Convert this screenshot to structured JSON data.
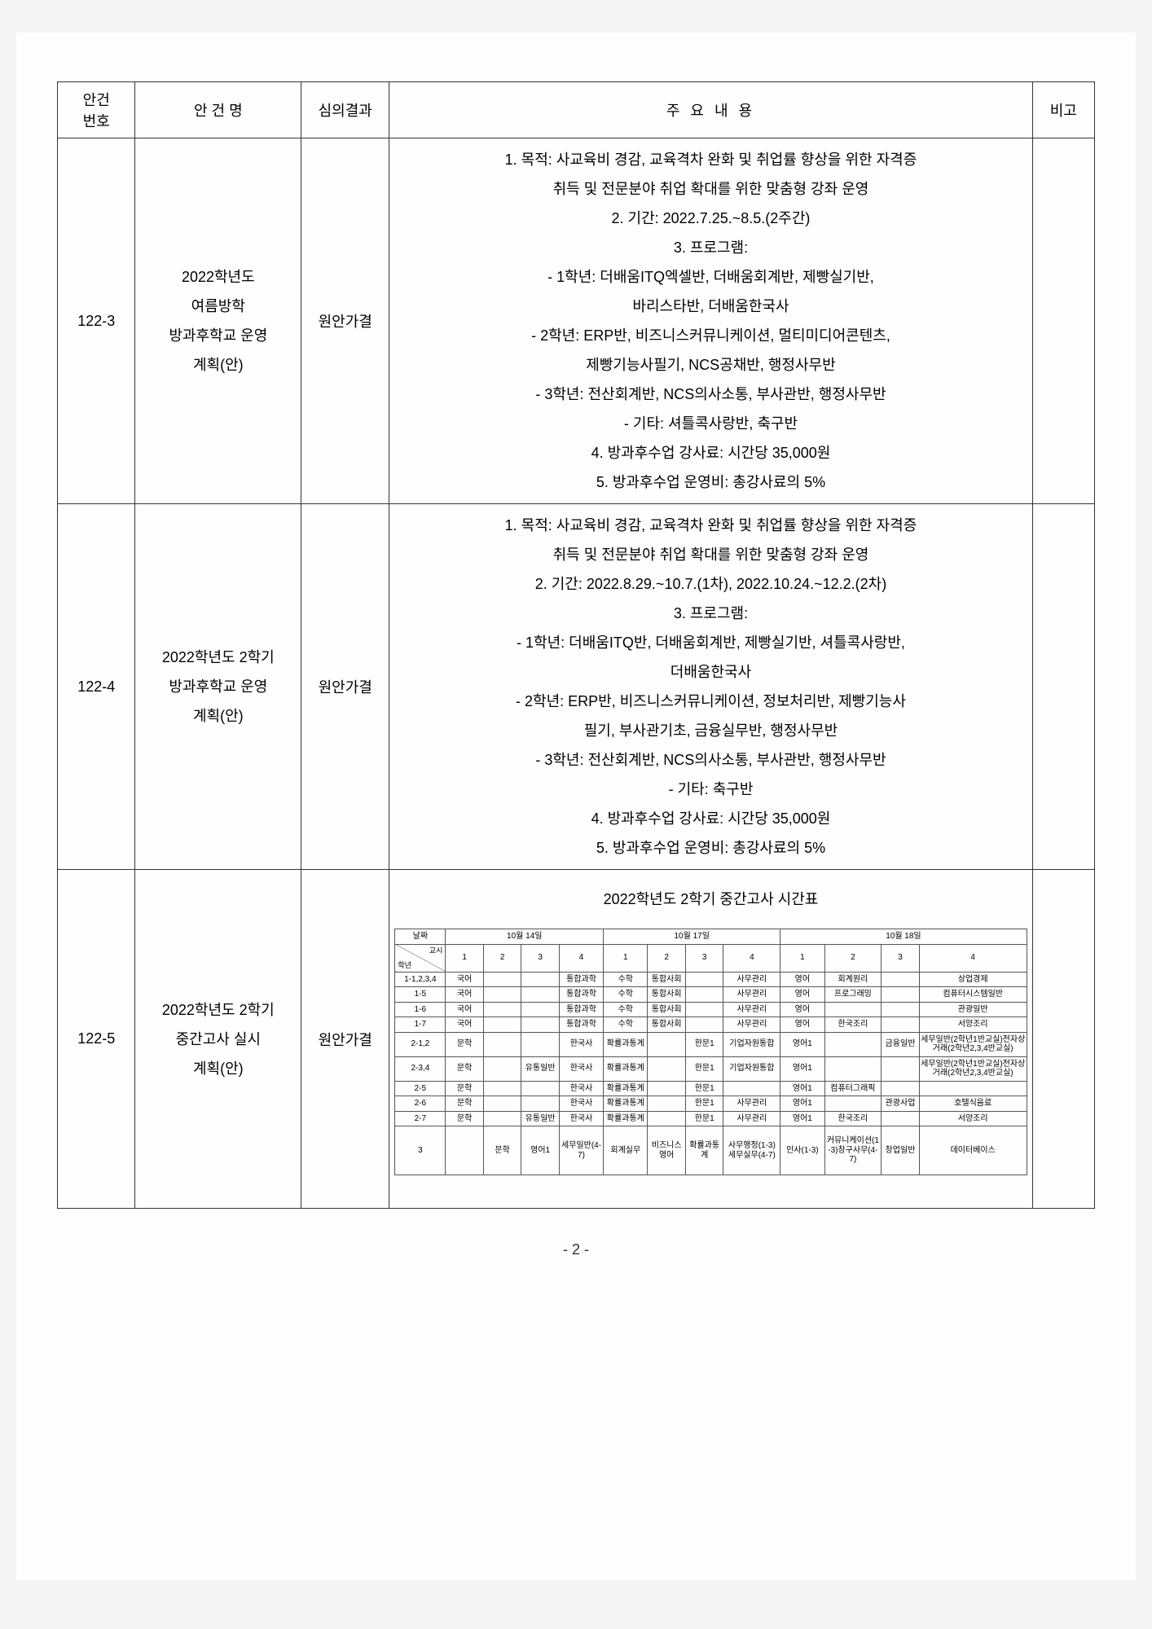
{
  "header": {
    "col_no": "안건\n번호",
    "col_title": "안 건 명",
    "col_result": "심의결과",
    "col_content": "주 요 내 용",
    "col_note": "비고"
  },
  "rows": [
    {
      "no": "122-3",
      "title": "2022학년도\n여름방학\n방과후학교 운영\n계획(안)",
      "result": "원안가결",
      "content": "1. 목적: 사교육비 경감, 교육격차 완화 및 취업률 향상을 위한 자격증\n            취득 및 전문분야 취업 확대를 위한 맞춤형 강좌 운영\n2. 기간: 2022.7.25.~8.5.(2주간)\n3. 프로그램:\n  - 1학년: 더배움ITQ엑셀반, 더배움회계반, 제빵실기반,\n              바리스타반, 더배움한국사\n  - 2학년: ERP반, 비즈니스커뮤니케이션, 멀티미디어콘텐츠,\n              제빵기능사필기, NCS공채반, 행정사무반\n  - 3학년: 전산회계반, NCS의사소통, 부사관반, 행정사무반\n  - 기타: 셔틀콕사랑반, 축구반\n4. 방과후수업 강사료: 시간당 35,000원\n5. 방과후수업 운영비: 총강사료의 5%",
      "note": ""
    },
    {
      "no": "122-4",
      "title": "2022학년도 2학기\n방과후학교 운영\n계획(안)",
      "result": "원안가결",
      "content": "1. 목적: 사교육비 경감, 교육격차 완화 및 취업률 향상을 위한 자격증\n            취득 및 전문분야 취업 확대를 위한 맞춤형 강좌 운영\n2. 기간: 2022.8.29.~10.7.(1차), 2022.10.24.~12.2.(2차)\n3. 프로그램:\n  - 1학년: 더배움ITQ반, 더배움회계반, 제빵실기반, 셔틀콕사랑반,\n              더배움한국사\n  - 2학년: ERP반, 비즈니스커뮤니케이션, 정보처리반, 제빵기능사\n              필기, 부사관기초, 금융실무반, 행정사무반\n  - 3학년: 전산회계반, NCS의사소통, 부사관반, 행정사무반\n  - 기타: 축구반\n4. 방과후수업 강사료: 시간당 35,000원\n5. 방과후수업 운영비: 총강사료의 5%",
      "note": ""
    },
    {
      "no": "122-5",
      "title": "2022학년도 2학기\n중간고사 실시\n계획(안)",
      "result": "원안가결",
      "schedule_title": "2022학년도 2학기 중간고사 시간표",
      "note": ""
    }
  ],
  "schedule": {
    "date_label": "날짜",
    "period_label": "교시",
    "grade_label": "학년",
    "dates": [
      "10월 14일",
      "10월 17일",
      "10월 18일"
    ],
    "periods": [
      "1",
      "2",
      "3",
      "4",
      "1",
      "2",
      "3",
      "4",
      "1",
      "2",
      "3",
      "4"
    ],
    "body": [
      {
        "g": "1-1,2,3,4",
        "c": [
          "국어",
          "",
          "",
          "통합과학",
          "수학",
          "통합사회",
          "",
          "사무관리",
          "영어",
          "회계원리",
          "",
          "상업경제"
        ]
      },
      {
        "g": "1-5",
        "c": [
          "국어",
          "",
          "",
          "통합과학",
          "수학",
          "통합사회",
          "",
          "사무관리",
          "영어",
          "프로그래밍",
          "",
          "컴퓨터시스템일반"
        ]
      },
      {
        "g": "1-6",
        "c": [
          "국어",
          "",
          "",
          "통합과학",
          "수학",
          "통합사회",
          "",
          "사무관리",
          "영어",
          "",
          "",
          "관광일반"
        ]
      },
      {
        "g": "1-7",
        "c": [
          "국어",
          "",
          "",
          "통합과학",
          "수학",
          "통합사회",
          "",
          "사무관리",
          "영어",
          "한국조리",
          "",
          "서양조리"
        ]
      },
      {
        "g": "2-1,2",
        "c": [
          "문학",
          "",
          "",
          "한국사",
          "확률과통계",
          "",
          "한문1",
          "기업자원통합",
          "영어1",
          "",
          "금융일반",
          "세무일반(2학년1반교실)전자상거래(2학년2,3,4반교실)"
        ]
      },
      {
        "g": "2-3,4",
        "c": [
          "문학",
          "",
          "유통일반",
          "한국사",
          "확률과통계",
          "",
          "한문1",
          "기업자원통합",
          "영어1",
          "",
          "",
          "세무일반(2학년1반교실)전자상거래(2학년2,3,4반교실)"
        ]
      },
      {
        "g": "2-5",
        "c": [
          "문학",
          "",
          "",
          "한국사",
          "확률과통계",
          "",
          "한문1",
          "",
          "영어1",
          "컴퓨터그래픽",
          "",
          ""
        ]
      },
      {
        "g": "2-6",
        "c": [
          "문학",
          "",
          "",
          "한국사",
          "확률과통계",
          "",
          "한문1",
          "사무관리",
          "영어1",
          "",
          "관광사업",
          "호텔식음료"
        ]
      },
      {
        "g": "2-7",
        "c": [
          "문학",
          "",
          "유통일반",
          "한국사",
          "확률과통계",
          "",
          "한문1",
          "사무관리",
          "영어1",
          "한국조리",
          "",
          "서양조리"
        ]
      },
      {
        "g": "3",
        "c": [
          "",
          "문학",
          "영어1",
          "세무일반(4-7)",
          "회계실무",
          "비즈니스영어",
          "확률과통계",
          "사무행정(1-3)세무실무(4-7)",
          "인사(1-3)",
          "커뮤니케이션(1-3)창구사무(4-7)",
          "창업일반",
          "데이터베이스"
        ]
      }
    ]
  },
  "page_number": "- 2 -",
  "colors": {
    "border": "#333333",
    "bg": "#fefefe",
    "text": "#222222"
  }
}
